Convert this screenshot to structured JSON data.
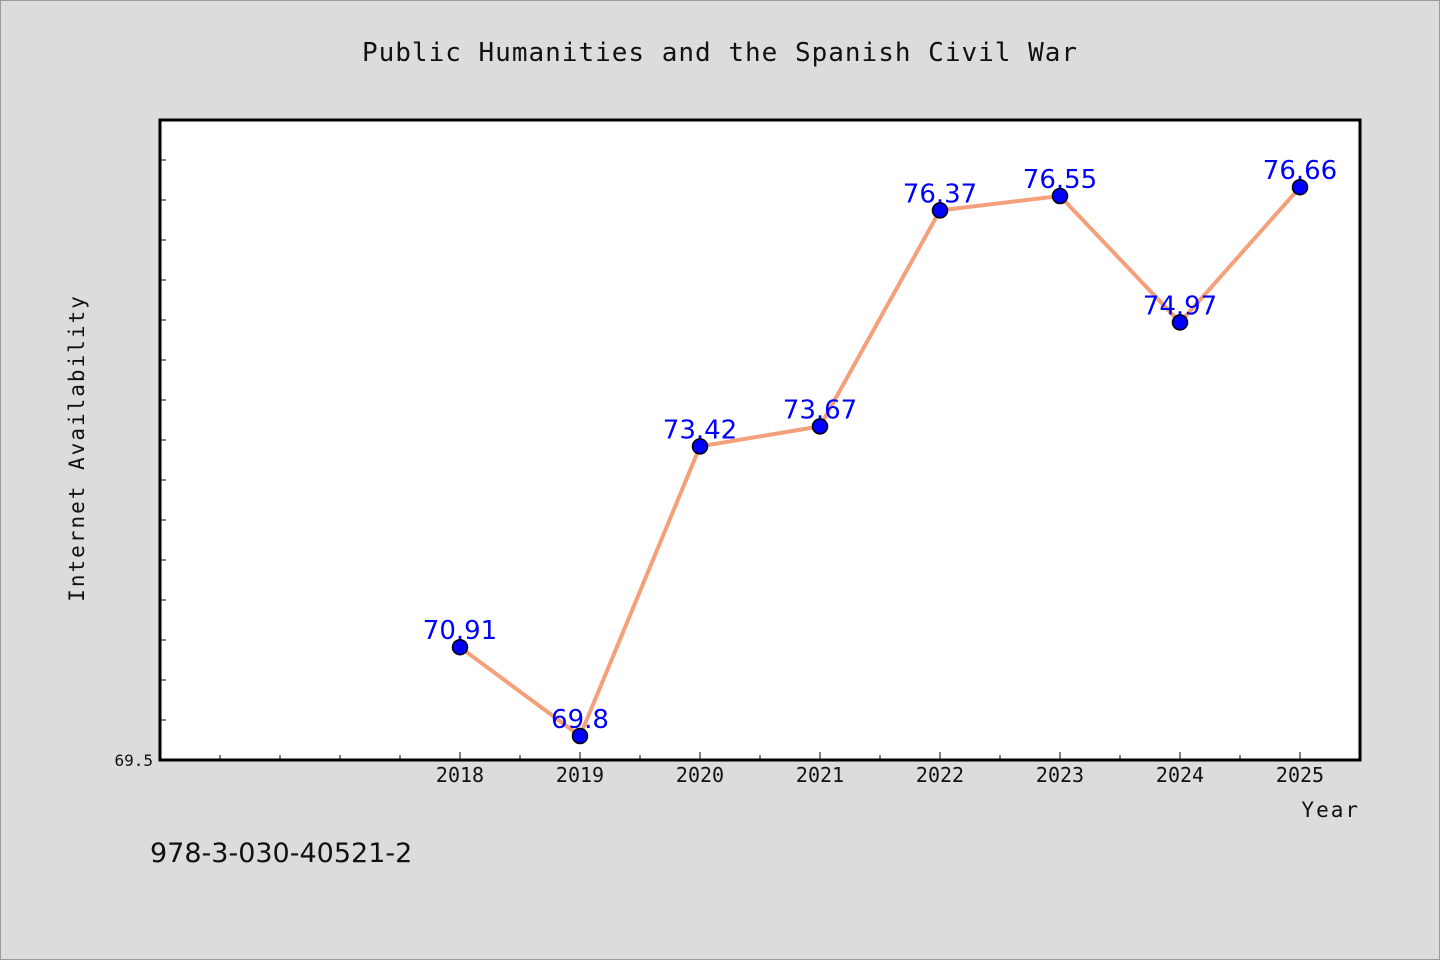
{
  "chart_data": {
    "type": "line",
    "title": "Public Humanities and the Spanish Civil War",
    "xlabel": "Year",
    "ylabel": "Internet Availability",
    "categories": [
      "2018",
      "2019",
      "2020",
      "2021",
      "2022",
      "2023",
      "2024",
      "2025"
    ],
    "series": [
      {
        "values": [
          70.91,
          69.8,
          73.42,
          73.67,
          76.37,
          76.55,
          74.97,
          76.66
        ],
        "labels": [
          "70.91",
          "69.8",
          "73.42",
          "73.67",
          "76.37",
          "76.55",
          "74.97",
          "76.66"
        ]
      }
    ],
    "ylim": [
      69.5,
      77.5
    ],
    "y_min_label": "69.5",
    "grid": false,
    "line_color": "#f4a07a",
    "marker_color": "#0000ff",
    "label_color": "#0000ff"
  },
  "footnote": "978-3-030-40521-2"
}
